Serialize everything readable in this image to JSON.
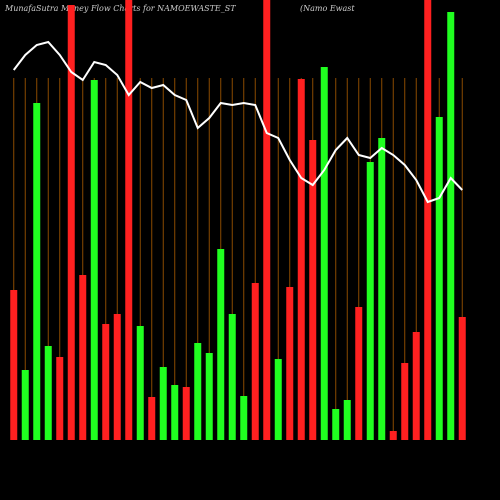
{
  "chart_data": {
    "type": "bar",
    "title": "MunafaSutra  Money Flow  Charts for NAMOEWASTE_ST",
    "subtitle": "(Namo   Ewast",
    "categories": [
      null,
      null,
      null,
      null,
      null,
      null,
      null,
      null,
      null,
      null,
      null,
      null,
      null,
      null,
      null,
      null,
      null,
      null,
      null,
      null,
      null,
      null,
      null,
      null,
      null,
      null,
      null,
      null,
      null,
      null,
      null,
      null,
      null,
      null,
      null,
      null,
      null,
      null,
      null,
      null
    ],
    "values": [
      150,
      70,
      337,
      94,
      83,
      435,
      165,
      360,
      116,
      126,
      440,
      114,
      43,
      73,
      55,
      53,
      97,
      87,
      191,
      126,
      44,
      157,
      440,
      81,
      153,
      361,
      300,
      373,
      31,
      40,
      133,
      278,
      302,
      9,
      77,
      108,
      440,
      323,
      428,
      123
    ],
    "colors": [
      "#ff2020",
      "#20ff20",
      "#20ff20",
      "#20ff20",
      "#ff2020",
      "#ff2020",
      "#ff2020",
      "#20ff20",
      "#ff2020",
      "#ff2020",
      "#ff2020",
      "#20ff20",
      "#ff2020",
      "#20ff20",
      "#20ff20",
      "#ff2020",
      "#20ff20",
      "#20ff20",
      "#20ff20",
      "#20ff20",
      "#20ff20",
      "#ff2020",
      "#ff2020",
      "#20ff20",
      "#ff2020",
      "#ff2020",
      "#ff2020",
      "#20ff20",
      "#20ff20",
      "#20ff20",
      "#ff2020",
      "#20ff20",
      "#20ff20",
      "#ff2020",
      "#ff2020",
      "#ff2020",
      "#ff2020",
      "#20ff20",
      "#20ff20",
      "#ff2020"
    ],
    "line": {
      "color": "#ffffff",
      "values": [
        370,
        385,
        395,
        398,
        385,
        368,
        360,
        378,
        375,
        365,
        345,
        358,
        352,
        355,
        345,
        340,
        312,
        322,
        337,
        335,
        337,
        335,
        307,
        302,
        280,
        262,
        255,
        270,
        290,
        302,
        285,
        282,
        292,
        285,
        275,
        260,
        238,
        242,
        262,
        250
      ]
    },
    "ylim": [
      0,
      440
    ]
  }
}
